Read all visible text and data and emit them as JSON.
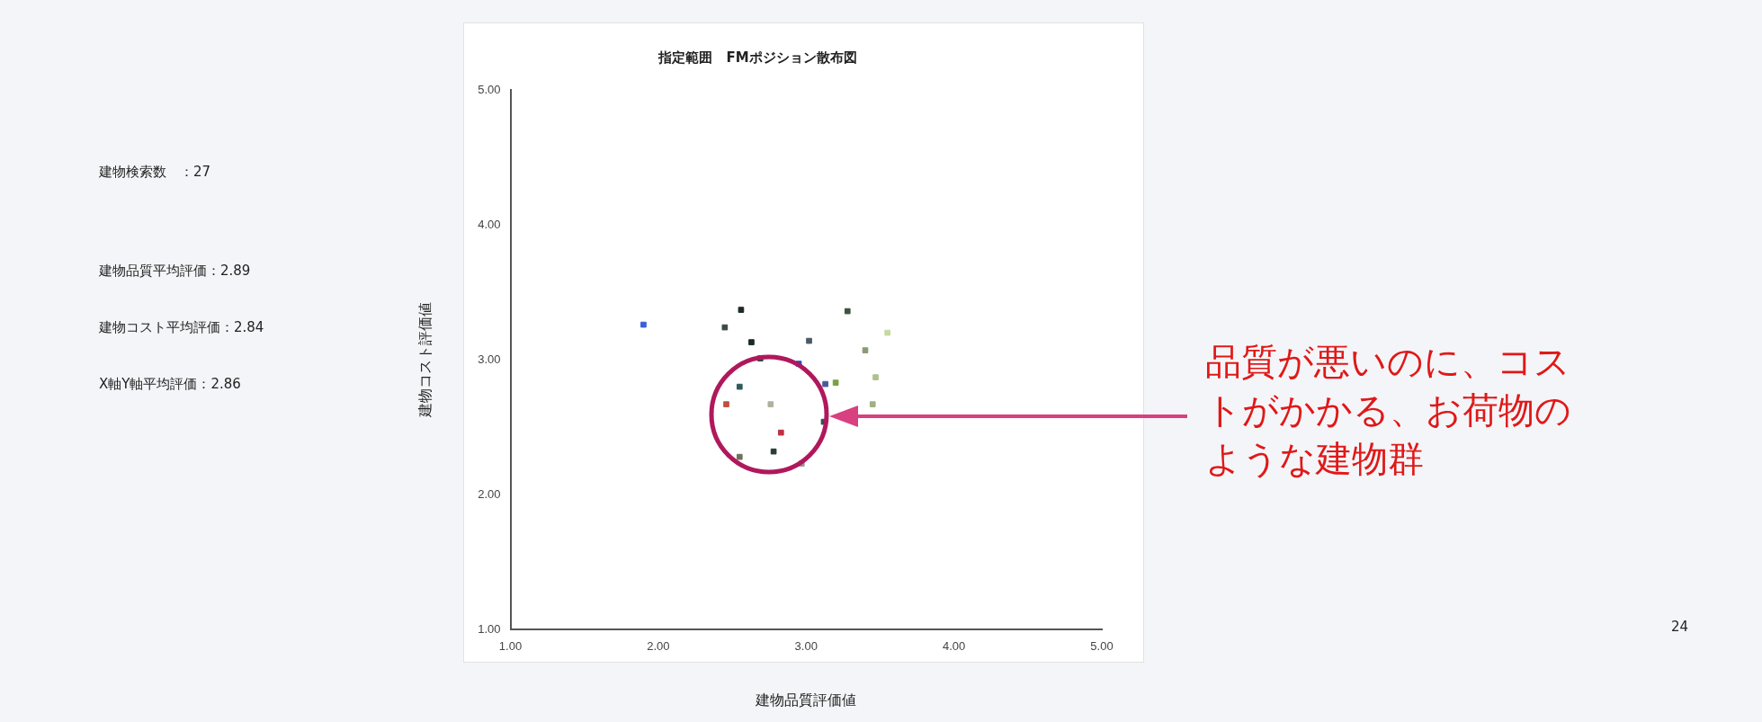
{
  "chart_data": {
    "type": "scatter",
    "title": "指定範囲　FMポジション散布図",
    "xlabel": "建物品質評価値",
    "ylabel": "建物コスト評価値",
    "x": [
      1.9,
      2.56,
      2.45,
      2.63,
      2.69,
      2.95,
      3.02,
      3.28,
      3.4,
      3.55,
      3.2,
      3.13,
      3.47,
      3.45,
      2.55,
      2.46,
      2.76,
      3.12,
      2.83,
      2.78,
      2.55,
      2.97
    ],
    "values": [
      3.26,
      3.37,
      3.24,
      3.13,
      3.01,
      2.97,
      3.14,
      3.36,
      3.07,
      3.2,
      2.83,
      2.82,
      2.87,
      2.67,
      2.8,
      2.67,
      2.67,
      2.54,
      2.46,
      2.32,
      2.28,
      2.23
    ],
    "colors": [
      "#3a5fd8",
      "#1c2a22",
      "#3c4a44",
      "#1a2a24",
      "#1f4a3c",
      "#2446c8",
      "#4a5a68",
      "#3e5240",
      "#8a9a70",
      "#c8d8a0",
      "#7aa040",
      "#4a5a98",
      "#b0c090",
      "#a0b080",
      "#2e5a5a",
      "#c05040",
      "#b0b0a0",
      "#3a4a5a",
      "#c03040",
      "#2a3a34",
      "#707060",
      "#9a9a90"
    ],
    "xlim": [
      1,
      5
    ],
    "ylim": [
      1,
      5
    ],
    "xticks": [
      {
        "value": 1,
        "label": "1.00"
      },
      {
        "value": 2,
        "label": "2.00"
      },
      {
        "value": 3,
        "label": "3.00"
      },
      {
        "value": 4,
        "label": "4.00"
      },
      {
        "value": 5,
        "label": "5.00"
      }
    ],
    "yticks": [
      {
        "value": 1,
        "label": "1.00"
      },
      {
        "value": 2,
        "label": "2.00"
      },
      {
        "value": 3,
        "label": "3.00"
      },
      {
        "value": 4,
        "label": "4.00"
      },
      {
        "value": 5,
        "label": "5.00"
      }
    ],
    "grid": false,
    "legend": false,
    "marker": "square",
    "annotations": [
      "建物検索数　：27",
      "建物品質平均評価：2.89",
      "建物コスト平均評価：2.84",
      "X軸Y軸平均評価：2.86",
      "品質が悪いのに、コストがかかる、お荷物のような建物群",
      "24"
    ]
  }
}
